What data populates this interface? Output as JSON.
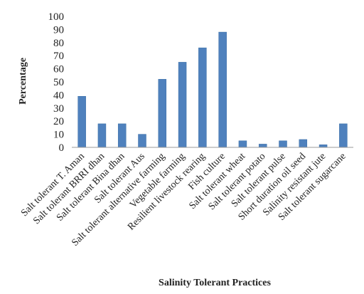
{
  "chart_data": {
    "type": "bar",
    "categories": [
      "Salt tolerant T. Aman",
      "Salt tolerant BRRI dhan",
      "Salt tolerant Bina dhan",
      "Salt tolerant Aus",
      "Salt tolerant alternative farming",
      "Vegetable farming",
      "Resilient livestock rearing",
      "Fish culture",
      "Salt tolerant wheat",
      "Salt tolerant potato",
      "Salt tolerant pulse",
      "Short duration oil seed",
      "Salinity resistant jute",
      "Salt tolerant sugarcane"
    ],
    "values": [
      39,
      18,
      18,
      10,
      52,
      65,
      76,
      88,
      5,
      2.5,
      5,
      6,
      2,
      18
    ],
    "yticks": [
      0,
      10,
      20,
      30,
      40,
      50,
      60,
      70,
      80,
      90,
      100
    ],
    "ylim": [
      0,
      100
    ],
    "xlabel": "Salinity Tolerant Practices",
    "ylabel": "Percentage",
    "grid": false,
    "bar_color": "#4f81bd",
    "bar_edge_color": "#3a6ea5"
  }
}
